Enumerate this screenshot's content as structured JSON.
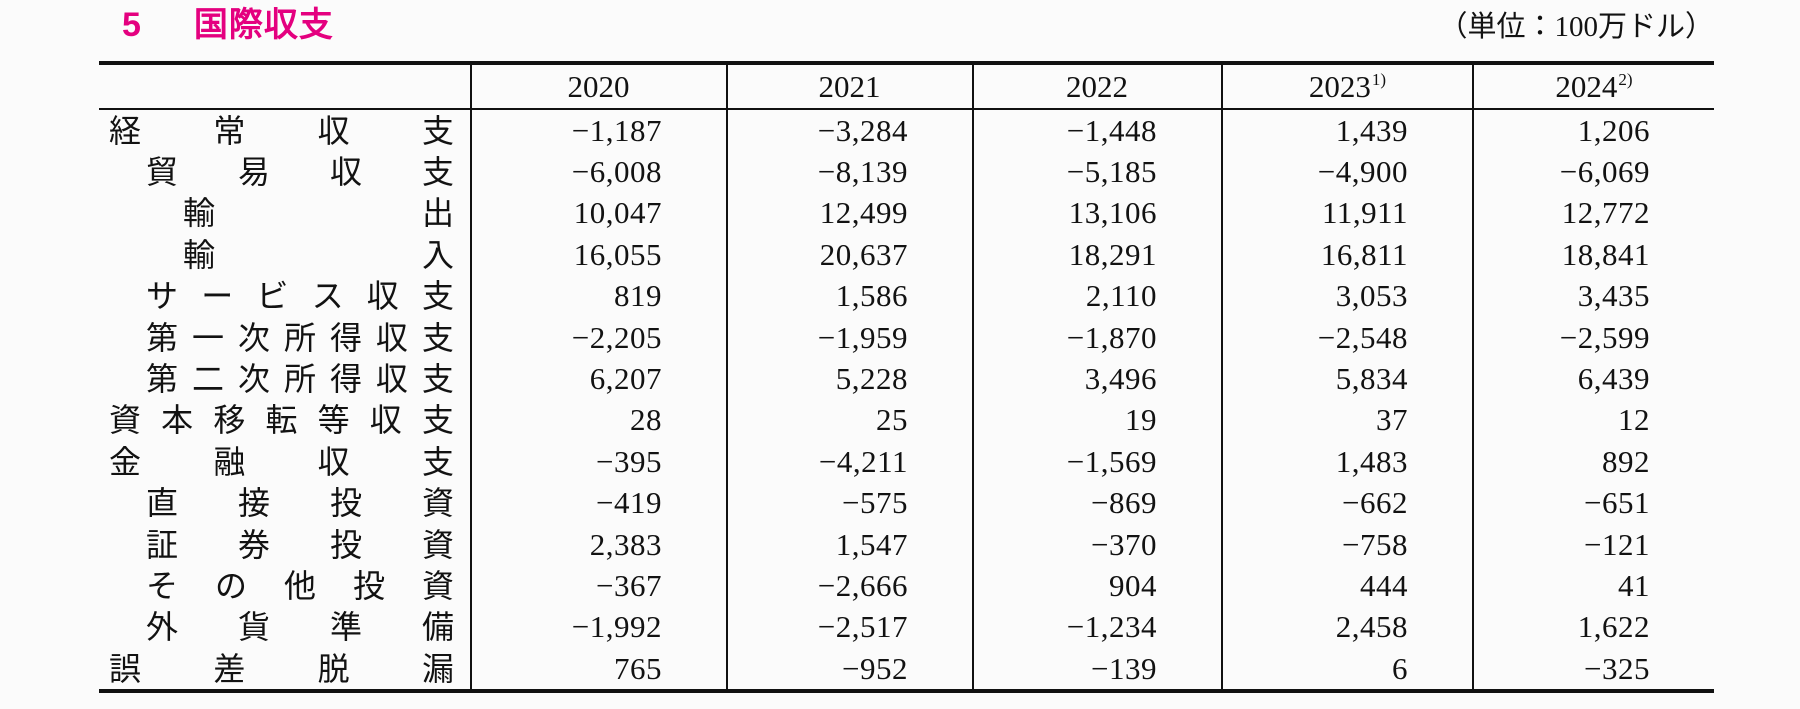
{
  "page": {
    "section_number": "5",
    "title": "国際収支",
    "unit_note": "（単位：100万ドル）"
  },
  "table": {
    "corner_header": "",
    "year_columns": [
      {
        "label": "2020",
        "footnote": ""
      },
      {
        "label": "2021",
        "footnote": ""
      },
      {
        "label": "2022",
        "footnote": ""
      },
      {
        "label": "2023",
        "footnote": "1)"
      },
      {
        "label": "2024",
        "footnote": "2)"
      }
    ],
    "rows": [
      {
        "label": "経常収支",
        "indent": 0,
        "values": [
          "−1,187",
          "−3,284",
          "−1,448",
          "1,439",
          "1,206"
        ]
      },
      {
        "label": "貿易収支",
        "indent": 1,
        "values": [
          "−6,008",
          "−8,139",
          "−5,185",
          "−4,900",
          "−6,069"
        ]
      },
      {
        "label": "輸出",
        "indent": 2,
        "values": [
          "10,047",
          "12,499",
          "13,106",
          "11,911",
          "12,772"
        ]
      },
      {
        "label": "輸入",
        "indent": 2,
        "values": [
          "16,055",
          "20,637",
          "18,291",
          "16,811",
          "18,841"
        ]
      },
      {
        "label": "サービス収支",
        "indent": 1,
        "values": [
          "819",
          "1,586",
          "2,110",
          "3,053",
          "3,435"
        ]
      },
      {
        "label": "第一次所得収支",
        "indent": 1,
        "values": [
          "−2,205",
          "−1,959",
          "−1,870",
          "−2,548",
          "−2,599"
        ]
      },
      {
        "label": "第二次所得収支",
        "indent": 1,
        "values": [
          "6,207",
          "5,228",
          "3,496",
          "5,834",
          "6,439"
        ]
      },
      {
        "label": "資本移転等収支",
        "indent": 0,
        "values": [
          "28",
          "25",
          "19",
          "37",
          "12"
        ]
      },
      {
        "label": "金融収支",
        "indent": 0,
        "values": [
          "−395",
          "−4,211",
          "−1,569",
          "1,483",
          "892"
        ]
      },
      {
        "label": "直接投資",
        "indent": 1,
        "values": [
          "−419",
          "−575",
          "−869",
          "−662",
          "−651"
        ]
      },
      {
        "label": "証券投資",
        "indent": 1,
        "values": [
          "2,383",
          "1,547",
          "−370",
          "−758",
          "−121"
        ]
      },
      {
        "label": "その他投資",
        "indent": 1,
        "values": [
          "−367",
          "−2,666",
          "904",
          "444",
          "41"
        ]
      },
      {
        "label": "外貨準備",
        "indent": 1,
        "values": [
          "−1,992",
          "−2,517",
          "−1,234",
          "2,458",
          "1,622"
        ]
      },
      {
        "label": "誤差脱漏",
        "indent": 0,
        "values": [
          "765",
          "−952",
          "−139",
          "6",
          "−325"
        ]
      }
    ]
  },
  "colors": {
    "title_accent": "#e4007f",
    "text": "#121212",
    "background": "#fbfbfb",
    "rule": "#111111"
  }
}
